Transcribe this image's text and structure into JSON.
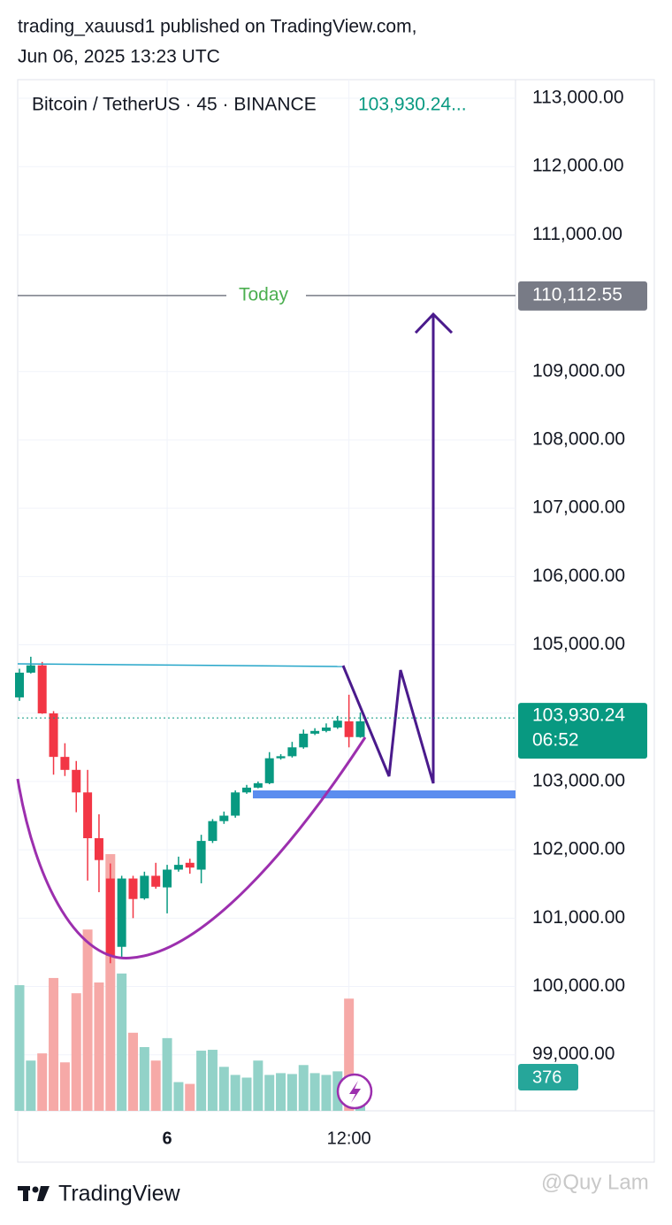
{
  "header": {
    "line1": "trading_xauusd1 published on TradingView.com,",
    "line2": "Jun 06, 2025 13:23 UTC"
  },
  "chart_data": {
    "type": "candlestick",
    "title": "Bitcoin / TetherUS · 45 · BINANCE",
    "legend_price": "103,930.24...",
    "categories": [
      null,
      null,
      null,
      null,
      null,
      null,
      null,
      null,
      null,
      null,
      null,
      null,
      null,
      "6",
      null,
      null,
      null,
      null,
      null,
      null,
      null,
      null,
      null,
      null,
      null,
      null,
      null,
      null,
      null,
      "12:00",
      null
    ],
    "open": [
      104231,
      104593,
      104700,
      103997,
      103360,
      103170,
      102840,
      102170,
      101580,
      100580,
      101580,
      101290,
      101620,
      101450,
      101710,
      101810,
      101710,
      102130,
      102420,
      102500,
      102840,
      102910,
      102975,
      103340,
      103370,
      103500,
      103700,
      103740,
      103790,
      103880,
      103650
    ],
    "high": [
      104650,
      104826,
      104750,
      104030,
      103560,
      103300,
      103170,
      102520,
      101800,
      101620,
      101620,
      101680,
      101810,
      101780,
      101900,
      101870,
      102220,
      102450,
      102560,
      102870,
      102950,
      103000,
      103430,
      103400,
      103580,
      103760,
      103780,
      103850,
      103960,
      104270,
      104010
    ],
    "low": [
      104180,
      104580,
      103990,
      103100,
      103080,
      102550,
      101550,
      101380,
      100340,
      100420,
      101000,
      101270,
      101430,
      101070,
      101680,
      101650,
      101510,
      102100,
      102380,
      102470,
      102820,
      102900,
      102960,
      103320,
      103350,
      103480,
      103680,
      103720,
      103770,
      103500,
      103640
    ],
    "close": [
      104593,
      104700,
      103997,
      103360,
      103170,
      102840,
      102170,
      101850,
      100450,
      101580,
      101280,
      101620,
      101460,
      101710,
      101780,
      101740,
      102130,
      102420,
      102500,
      102840,
      102910,
      102975,
      103340,
      103370,
      103500,
      103700,
      103740,
      103790,
      103890,
      103650,
      103880
    ],
    "volume": [
      1400,
      560,
      640,
      1480,
      540,
      1310,
      2020,
      1430,
      2860,
      1530,
      870,
      710,
      560,
      810,
      320,
      300,
      670,
      680,
      490,
      400,
      370,
      560,
      400,
      420,
      410,
      510,
      420,
      400,
      440,
      1250,
      376
    ],
    "up_color": "#089981",
    "down_color": "#f23645",
    "ylim": [
      98180,
      113272
    ],
    "yticks": [
      {
        "value": 99000,
        "label": "99,000.00"
      },
      {
        "value": 100000,
        "label": "100,000.00"
      },
      {
        "value": 101000,
        "label": "101,000.00"
      },
      {
        "value": 102000,
        "label": "102,000.00"
      },
      {
        "value": 103000,
        "label": "103,000.00"
      },
      {
        "value": 104000,
        "label": "104,000.00"
      },
      {
        "value": 105000,
        "label": "105,000.00"
      },
      {
        "value": 106000,
        "label": "106,000.00"
      },
      {
        "value": 107000,
        "label": "107,000.00"
      },
      {
        "value": 108000,
        "label": "108,000.00"
      },
      {
        "value": 109000,
        "label": "109,000.00"
      },
      {
        "value": 111000,
        "label": "111,000.00"
      },
      {
        "value": 112000,
        "label": "112,000.00"
      },
      {
        "value": 113000,
        "label": "113,000.00"
      }
    ],
    "grid": true,
    "today": {
      "label": "Today",
      "value": 110112.55,
      "value_label": "110,112.55"
    },
    "last_price": {
      "value": 103930.24,
      "label": "103,930.24",
      "countdown": "06:52"
    }
  },
  "footer": {
    "brand": "TradingView",
    "watermark": "@Quy Lam"
  }
}
